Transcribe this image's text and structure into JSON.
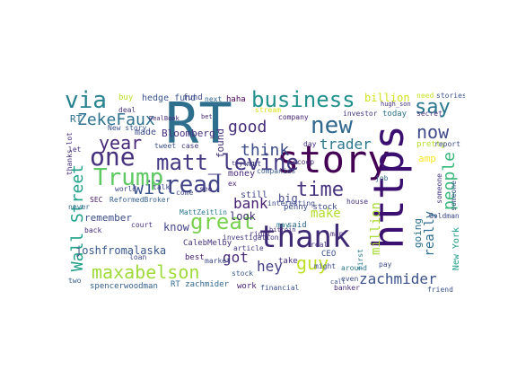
{
  "wordcloud": {
    "words": [
      {
        "text": "RT",
        "color": "#2f6f8e"
      },
      {
        "text": "story",
        "color": "#440154"
      },
      {
        "text": "https",
        "color": "#3b0f70"
      },
      {
        "text": "thank",
        "color": "#3e2a74"
      },
      {
        "text": "new",
        "color": "#31688e"
      },
      {
        "text": "business",
        "color": "#21918c"
      },
      {
        "text": "via",
        "color": "#26828e"
      },
      {
        "text": "say",
        "color": "#2a788e"
      },
      {
        "text": "now",
        "color": "#3e4a89"
      },
      {
        "text": "people",
        "color": "#35b779"
      },
      {
        "text": "ZekeFaux",
        "color": "#2c728e"
      },
      {
        "text": "good",
        "color": "#472d7b"
      },
      {
        "text": "year",
        "color": "#482878"
      },
      {
        "text": "will",
        "color": "#3b528b"
      },
      {
        "text": "one",
        "color": "#46327e"
      },
      {
        "text": "Trump",
        "color": "#5ec962"
      },
      {
        "text": "matt_levine",
        "color": "#443983"
      },
      {
        "text": "read",
        "color": "#404387"
      },
      {
        "text": "great",
        "color": "#7ad151"
      },
      {
        "text": "think",
        "color": "#3d4e8a"
      },
      {
        "text": "trader",
        "color": "#2a788e"
      },
      {
        "text": "time",
        "color": "#46337e"
      },
      {
        "text": "bank",
        "color": "#481f70"
      },
      {
        "text": "make",
        "color": "#b5de2b"
      },
      {
        "text": "Wall Street",
        "color": "#1fa187"
      },
      {
        "text": "maxabelson",
        "color": "#9fda3a"
      },
      {
        "text": "guy",
        "color": "#bddf26"
      },
      {
        "text": "zachmider",
        "color": "#3b528b"
      },
      {
        "text": "hey",
        "color": "#433e85"
      },
      {
        "text": "got",
        "color": "#472c7a"
      },
      {
        "text": "really",
        "color": "#2e6e8e"
      },
      {
        "text": "million",
        "color": "#a8db34"
      },
      {
        "text": "billion",
        "color": "#d2e21b"
      },
      {
        "text": "joshfromalaska",
        "color": "#38588c"
      },
      {
        "text": "hedge fund",
        "color": "#3a538b"
      },
      {
        "text": "Bloomberg",
        "color": "#46307e"
      },
      {
        "text": "made",
        "color": "#3e4989"
      },
      {
        "text": "remember",
        "color": "#3d4d8a"
      },
      {
        "text": "spencerwoodman",
        "color": "#355f8d"
      },
      {
        "text": "RT zachmider",
        "color": "#31688e"
      },
      {
        "text": "know",
        "color": "#414487"
      },
      {
        "text": "look",
        "color": "#472f7d"
      },
      {
        "text": "big",
        "color": "#3f4788"
      },
      {
        "text": "going",
        "color": "#2d708e"
      },
      {
        "text": "penny stock",
        "color": "#3e4c8a"
      },
      {
        "text": "money",
        "color": "#472c7a"
      },
      {
        "text": "found",
        "color": "#46327e"
      },
      {
        "text": "still",
        "color": "#404588"
      },
      {
        "text": "said",
        "color": "#31688e"
      },
      {
        "text": "New York",
        "color": "#1f9e89"
      },
      {
        "text": "amp",
        "color": "#fde725"
      },
      {
        "text": "CEO",
        "color": "#3b528b"
      },
      {
        "text": "best",
        "color": "#482173"
      },
      {
        "text": "today",
        "color": "#2c728e"
      },
      {
        "text": "buy",
        "color": "#b8de29"
      },
      {
        "text": "fund",
        "color": "#3f4889"
      },
      {
        "text": "haha",
        "color": "#440154"
      },
      {
        "text": "next",
        "color": "#31688e"
      },
      {
        "text": "CalebMelby",
        "color": "#46337e"
      },
      {
        "text": "SEC",
        "color": "#481a6c"
      },
      {
        "text": "ReformedBroker",
        "color": "#355f8d"
      },
      {
        "text": "investigation",
        "color": "#443a83"
      },
      {
        "text": "work",
        "color": "#481b6d"
      },
      {
        "text": "financial",
        "color": "#3b528b"
      },
      {
        "text": "banker",
        "color": "#472d7b"
      },
      {
        "text": "company",
        "color": "#482475"
      },
      {
        "text": "need",
        "color": "#c8e020"
      },
      {
        "text": "stories",
        "color": "#3b528b"
      },
      {
        "text": "take",
        "color": "#46307e"
      },
      {
        "text": "around",
        "color": "#2a788e"
      },
      {
        "text": "pay",
        "color": "#3e4c8a"
      },
      {
        "text": "real",
        "color": "#46337e"
      },
      {
        "text": "stock",
        "color": "#38588c"
      },
      {
        "text": "market",
        "color": "#3e4a89"
      },
      {
        "text": "see",
        "color": "#443983"
      },
      {
        "text": "come",
        "color": "#3f4788"
      },
      {
        "text": "man",
        "color": "#472d7b"
      },
      {
        "text": "may",
        "color": "#2a788e"
      },
      {
        "text": "scoop",
        "color": "#482878"
      },
      {
        "text": "want",
        "color": "#423f85"
      },
      {
        "text": "day",
        "color": "#46327e"
      },
      {
        "text": "pretty",
        "color": "#b5de2b"
      },
      {
        "text": "Goldman",
        "color": "#3f4788"
      },
      {
        "text": "friend",
        "color": "#3b528b"
      },
      {
        "text": "deal",
        "color": "#46307e"
      },
      {
        "text": "case",
        "color": "#443983"
      },
      {
        "text": "talk",
        "color": "#3e4a89"
      },
      {
        "text": "house",
        "color": "#46327e"
      },
      {
        "text": "job",
        "color": "#31688e"
      },
      {
        "text": "New story",
        "color": "#3b528b"
      },
      {
        "text": "back",
        "color": "#472c7a"
      },
      {
        "text": "loan",
        "color": "#3e4989"
      },
      {
        "text": "ex",
        "color": "#482475"
      },
      {
        "text": "article",
        "color": "#443983"
      },
      {
        "text": "even",
        "color": "#3b528b"
      },
      {
        "text": "court",
        "color": "#46327e"
      },
      {
        "text": "world",
        "color": "#3f4788"
      },
      {
        "text": "never",
        "color": "#31688e"
      },
      {
        "text": "two",
        "color": "#355f8d"
      },
      {
        "text": "thanks lot",
        "color": "#46307e"
      },
      {
        "text": "investor",
        "color": "#443983"
      },
      {
        "text": "companies",
        "color": "#38588c"
      },
      {
        "text": "report",
        "color": "#3e4a89"
      },
      {
        "text": "secret",
        "color": "#472c7a"
      },
      {
        "text": "tweet",
        "color": "#3b528b"
      },
      {
        "text": "let",
        "color": "#46327e"
      },
      {
        "text": "first",
        "color": "#2a788e"
      },
      {
        "text": "might",
        "color": "#3e4c8a"
      },
      {
        "text": "someone",
        "color": "#3b528b"
      },
      {
        "text": "right",
        "color": "#46307e"
      },
      {
        "text": "someone",
        "color": "#443983"
      },
      {
        "text": "stream",
        "color": "#d8e219"
      },
      {
        "text": "MattZeitlin",
        "color": "#2a788e"
      },
      {
        "text": "interesting",
        "color": "#3e4a89"
      },
      {
        "text": "DealBook",
        "color": "#482878"
      },
      {
        "text": "bitcoin",
        "color": "#46327e"
      },
      {
        "text": "call",
        "color": "#3b528b"
      },
      {
        "text": "trying",
        "color": "#443983"
      },
      {
        "text": "hugh_son",
        "color": "#46337e"
      },
      {
        "text": "bet",
        "color": "#472c7a"
      }
    ]
  }
}
